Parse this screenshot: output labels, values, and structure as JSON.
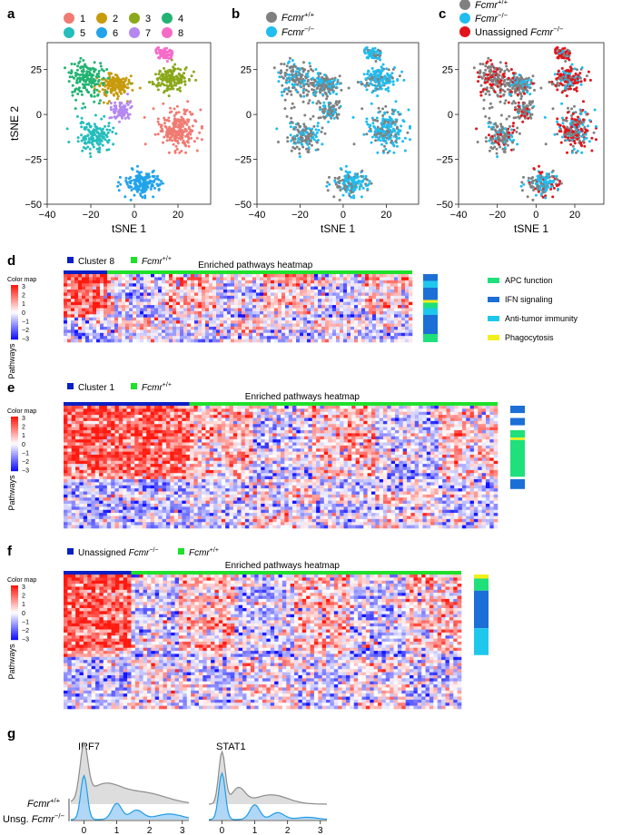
{
  "panel_letters": [
    "a",
    "b",
    "c",
    "d",
    "e",
    "f",
    "g"
  ],
  "tsne": {
    "xlabel": "tSNE 1",
    "ylabel": "tSNE 2",
    "xticks": [
      "−40",
      "−20",
      "0",
      "20"
    ],
    "yticks": [
      "−50",
      "−25",
      "0",
      "25"
    ],
    "xlim": [
      -40,
      35
    ],
    "ylim": [
      -50,
      40
    ]
  },
  "cluster_legend": [
    {
      "label": "1",
      "color": "#f07b72"
    },
    {
      "label": "2",
      "color": "#c79b0c"
    },
    {
      "label": "3",
      "color": "#8aa81a"
    },
    {
      "label": "4",
      "color": "#22b372"
    },
    {
      "label": "5",
      "color": "#25bdbd"
    },
    {
      "label": "6",
      "color": "#23a3ea"
    },
    {
      "label": "7",
      "color": "#b488f0"
    },
    {
      "label": "8",
      "color": "#f66bc8"
    }
  ],
  "genotype_legend": [
    {
      "gene": "Fcmr",
      "sup": "+/+",
      "color": "#808080"
    },
    {
      "gene": "Fcmr",
      "sup": "−/−",
      "color": "#1fbdf0"
    }
  ],
  "genotype_legend_c": [
    {
      "prefix": "",
      "gene": "Fcmr",
      "sup": "+/+",
      "color": "#808080"
    },
    {
      "prefix": "",
      "gene": "Fcmr",
      "sup": "−/−",
      "color": "#1fbdf0"
    },
    {
      "prefix": "Unassigned ",
      "gene": "Fcmr",
      "sup": "−/−",
      "color": "#e2141a"
    }
  ],
  "heatmaps": {
    "title": "Enriched pathways heatmap",
    "colormap_label": "Color map",
    "row_label": "Pathways",
    "scale_ticks": [
      "3",
      "2",
      "1",
      "0",
      "−1",
      "−2",
      "−3"
    ],
    "d": {
      "group_a": "Cluster 8",
      "group_b_gene": "Fcmr",
      "group_b_sup": "+/+"
    },
    "e": {
      "group_a": "Cluster 1",
      "group_b_gene": "Fcmr",
      "group_b_sup": "+/+"
    },
    "f": {
      "group_a_prefix": "Unassigned ",
      "group_a_gene": "Fcmr",
      "group_a_sup": "−/−",
      "group_b_gene": "Fcmr",
      "group_b_sup": "+/+"
    }
  },
  "pathway_legend": [
    {
      "label": "APC function",
      "color": "#1fe07a"
    },
    {
      "label": "IFN signaling",
      "color": "#1c6fd6"
    },
    {
      "label": "Anti-tumor immunity",
      "color": "#1ec8ec"
    },
    {
      "label": "Phagocytosis",
      "color": "#f2ef1a"
    }
  ],
  "chart_data": [
    {
      "type": "scatter",
      "panel": "a",
      "xlabel": "tSNE 1",
      "ylabel": "tSNE 2",
      "xlim": [
        -40,
        35
      ],
      "ylim": [
        -50,
        40
      ],
      "legend": [
        "1",
        "2",
        "3",
        "4",
        "5",
        "6",
        "7",
        "8"
      ]
    },
    {
      "type": "scatter",
      "panel": "b",
      "xlabel": "tSNE 1",
      "xlim": [
        -40,
        35
      ],
      "ylim": [
        -50,
        40
      ]
    },
    {
      "type": "scatter",
      "panel": "c",
      "xlabel": "tSNE 1",
      "xlim": [
        -40,
        35
      ],
      "ylim": [
        -50,
        40
      ]
    },
    {
      "type": "heatmap",
      "panel": "d",
      "title": "Enriched pathways heatmap",
      "ylabel": "Pathways",
      "color_range": [
        -3,
        3
      ]
    },
    {
      "type": "heatmap",
      "panel": "e",
      "title": "Enriched pathways heatmap",
      "ylabel": "Pathways",
      "color_range": [
        -3,
        3
      ]
    },
    {
      "type": "heatmap",
      "panel": "f",
      "title": "Enriched pathways heatmap",
      "ylabel": "Pathways",
      "color_range": [
        -3,
        3
      ]
    },
    {
      "type": "area",
      "panel": "g",
      "genes": [
        "IRF7",
        "STAT1"
      ],
      "xticks": [
        "0",
        "1",
        "2",
        "3"
      ],
      "xlim": [
        -0.4,
        3.2
      ],
      "rows": [
        {
          "gene": "Fcmr",
          "sup": "+/+",
          "prefix": "",
          "color": "#8c8c8c"
        },
        {
          "gene": "Fcmr",
          "sup": "−/−",
          "prefix": "Unsg. ",
          "color": "#1f9de6"
        }
      ],
      "irf7_top_peak_x": 0,
      "irf7_bottom_peak_x": 0,
      "stat1_top_peak_x": 0,
      "stat1_bottom_peak_x": 0
    }
  ]
}
